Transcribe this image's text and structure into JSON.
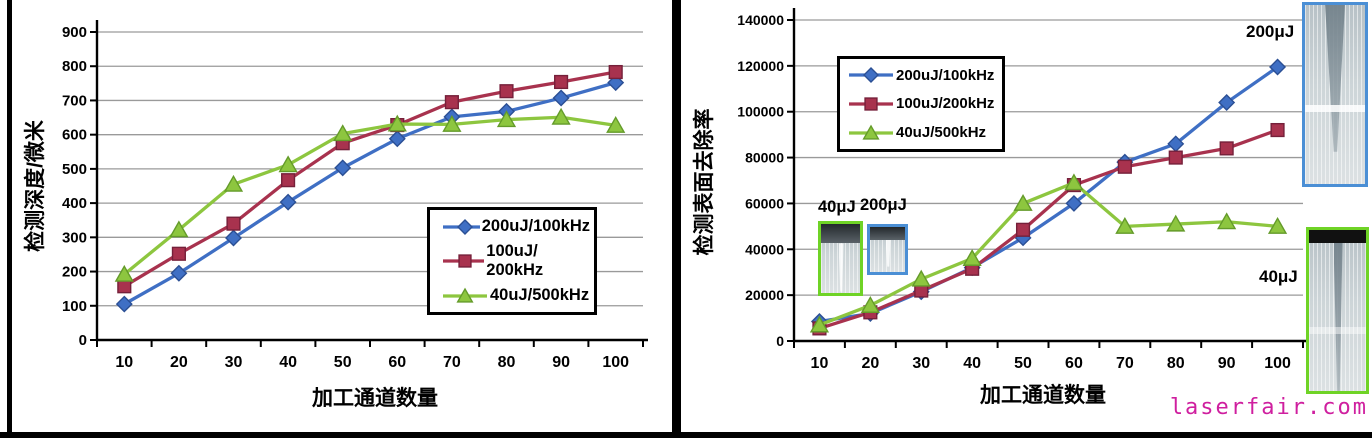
{
  "page": {
    "watermark": "laserfair.com",
    "watermark_color": "#cf1f9f",
    "frame_color": "#000000"
  },
  "insets": {
    "small": [
      {
        "label": "40μJ",
        "border_color": "#6fd326"
      },
      {
        "label": "200μJ",
        "border_color": "#4b8fd5"
      }
    ],
    "large": [
      {
        "label": "200μJ",
        "border_color": "#4b8fd5"
      },
      {
        "label": "40μJ",
        "border_color": "#6fd326"
      }
    ]
  },
  "chart_data": [
    {
      "type": "line",
      "title": "",
      "ylabel": "检测深度/微米",
      "xlabel": "加工通道数量",
      "ylim": [
        0,
        900
      ],
      "ytick_step": 100,
      "grid": true,
      "grid_color": "#9a9a9a",
      "legend_position": "lower-right",
      "categories": [
        "10",
        "20",
        "30",
        "40",
        "50",
        "60",
        "70",
        "80",
        "90",
        "100"
      ],
      "series": [
        {
          "name": "200uJ/100kHz",
          "marker": "diamond",
          "color": "#3f6fc4",
          "edge": "#2b4f94",
          "values": [
            105,
            195,
            298,
            403,
            503,
            588,
            652,
            668,
            707,
            752
          ]
        },
        {
          "name": "100uJ/ 200kHz",
          "marker": "square",
          "color": "#a8324e",
          "edge": "#75203a",
          "values": [
            157,
            252,
            340,
            467,
            575,
            628,
            695,
            727,
            754,
            783
          ]
        },
        {
          "name": "40uJ/500kHz",
          "marker": "triangle",
          "color": "#8dc63f",
          "edge": "#649b2a",
          "values": [
            192,
            322,
            455,
            512,
            603,
            631,
            630,
            644,
            651,
            627
          ]
        }
      ]
    },
    {
      "type": "line",
      "title": "",
      "ylabel": "检测表面去除率",
      "xlabel": "加工通道数量",
      "ylim": [
        0,
        140000
      ],
      "ytick_step": 20000,
      "grid": true,
      "grid_color": "#9a9a9a",
      "legend_position": "upper-left",
      "categories": [
        "10",
        "20",
        "30",
        "40",
        "50",
        "60",
        "70",
        "80",
        "90",
        "100"
      ],
      "series": [
        {
          "name": "200uJ/100kHz",
          "marker": "diamond",
          "color": "#3f6fc4",
          "edge": "#2b4f94",
          "values": [
            8500,
            12000,
            21500,
            32000,
            45000,
            60000,
            78000,
            86000,
            104000,
            119500
          ]
        },
        {
          "name": "100uJ/200kHz",
          "marker": "square",
          "color": "#a8324e",
          "edge": "#75203a",
          "values": [
            5500,
            12500,
            22000,
            31500,
            48500,
            68000,
            76000,
            80000,
            84000,
            92000
          ]
        },
        {
          "name": "40uJ/500kHz",
          "marker": "triangle",
          "color": "#8dc63f",
          "edge": "#649b2a",
          "values": [
            7000,
            15500,
            27000,
            36000,
            60000,
            69000,
            50000,
            51000,
            52000,
            50000
          ]
        }
      ]
    }
  ]
}
